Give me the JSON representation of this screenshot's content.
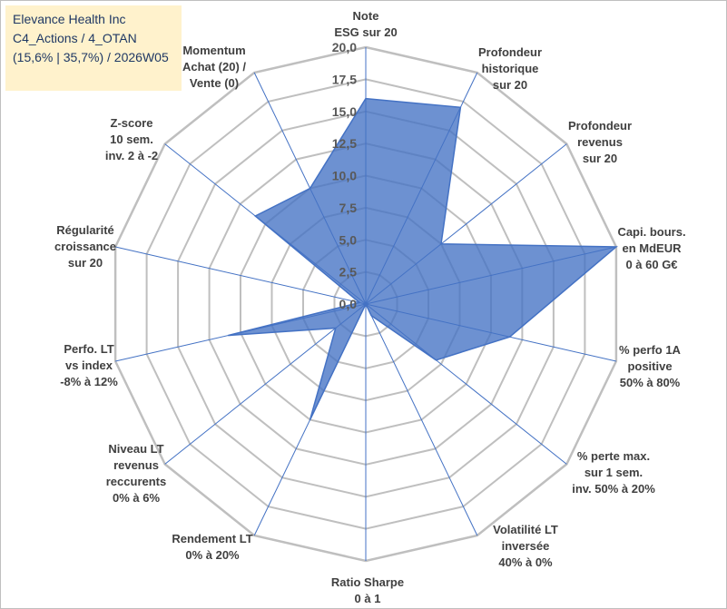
{
  "title_box": {
    "line1": "Elevance Health Inc",
    "line2": "C4_Actions / 4_OTAN",
    "line3": "(15,6% | 35,7%) / 2026W05",
    "background": "#fff2cc",
    "text_color": "#1f3864"
  },
  "chart_data": {
    "type": "radar",
    "title": "",
    "rmin": 0,
    "rmax": 20,
    "tick_step": 2.5,
    "tick_labels": [
      "0,0",
      "2,5",
      "5,0",
      "7,5",
      "10,0",
      "12,5",
      "15,0",
      "17,5",
      "20,0"
    ],
    "axes": [
      [
        "Note",
        "ESG sur 20"
      ],
      [
        "Profondeur",
        "historique",
        "sur 20"
      ],
      [
        "Profondeur",
        "revenus",
        "sur 20"
      ],
      [
        "Capi. bours.",
        "en MdEUR",
        "0 à 60 G€"
      ],
      [
        "% perfo 1A",
        "positive",
        "50% à 80%"
      ],
      [
        "% perte max.",
        "sur 1 sem.",
        "inv. 50% à 20%"
      ],
      [
        "Volatilité LT",
        "inversée",
        "40% à 0%"
      ],
      [
        "Ratio Sharpe",
        "0 à 1"
      ],
      [
        "Rendement LT",
        "0% à 20%"
      ],
      [
        "Niveau LT",
        "revenus",
        "reccurents",
        "0% à 6%"
      ],
      [
        "Perfo. LT",
        "vs index",
        "-8% à 12%"
      ],
      [
        "Régularité",
        "croissance",
        "sur 20"
      ],
      [
        "Z-score",
        "10 sem.",
        "inv. 2 à -2"
      ],
      [
        "Momentum",
        "Achat (20) /",
        "Vente (0)"
      ]
    ],
    "series": [
      {
        "name": "Elevance Health Inc",
        "values": [
          16.0,
          17.0,
          7.5,
          20.0,
          11.5,
          7.0,
          1.0,
          0.0,
          10.0,
          3.0,
          11.0,
          0.5,
          11.0,
          10.0
        ],
        "fill": "#4472c4",
        "fill_opacity": 0.78,
        "stroke": "#4472c4"
      }
    ],
    "grid_color": "#bfbfbf",
    "spoke_color": "#4472c4"
  }
}
